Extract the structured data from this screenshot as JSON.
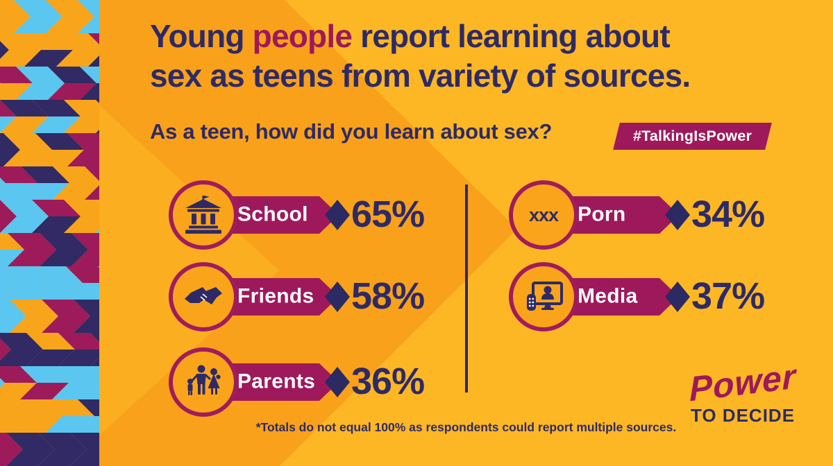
{
  "colors": {
    "bg_light": "#FDB725",
    "bg_dark": "#F9A11B",
    "bg_mid": "#FBAE20",
    "magenta": "#9E195B",
    "navy": "#2E2A66",
    "diamond_navy": "#2B2A62",
    "circle_ring": "#A01C5C",
    "circle_fill": "#FAA41C",
    "white": "#FFFFFF"
  },
  "side_pattern": {
    "palette": [
      "#312A64",
      "#9E1B5B",
      "#5BC6F0",
      "#F9A51C"
    ]
  },
  "title": {
    "line1_pre": "Young ",
    "line1_highlight": "people",
    "line1_post": " report learning about",
    "line2": "sex as teens from variety of sources."
  },
  "question": {
    "text": "As a teen, how did you learn about sex?",
    "hashtag": "#TalkingIsPower"
  },
  "stats": {
    "rows": [
      {
        "label": "School",
        "value": "65%",
        "icon": "school-building-icon"
      },
      {
        "label": "Friends",
        "value": "58%",
        "icon": "handshake-icon"
      },
      {
        "label": "Parents",
        "value": "36%",
        "icon": "family-icon"
      },
      {
        "label": "Porn",
        "value": "34%",
        "icon": "xxx-icon",
        "icon_text": "xxx"
      },
      {
        "label": "Media",
        "value": "37%",
        "icon": "media-screen-icon"
      }
    ]
  },
  "footnote": "*Totals do not equal 100% as respondents could report multiple sources.",
  "logo": {
    "line1": "Power",
    "line2": "TO DECIDE"
  },
  "chart_data": {
    "type": "bar",
    "title": "Young people report learning about sex as teens from variety of sources.",
    "subtitle": "As a teen, how did you learn about sex?",
    "categories": [
      "School",
      "Friends",
      "Parents",
      "Porn",
      "Media"
    ],
    "values": [
      65,
      58,
      36,
      34,
      37
    ],
    "unit": "%",
    "legend": [],
    "note": "*Totals do not equal 100% as respondents could report multiple sources.",
    "source_tag": "#TalkingIsPower"
  }
}
